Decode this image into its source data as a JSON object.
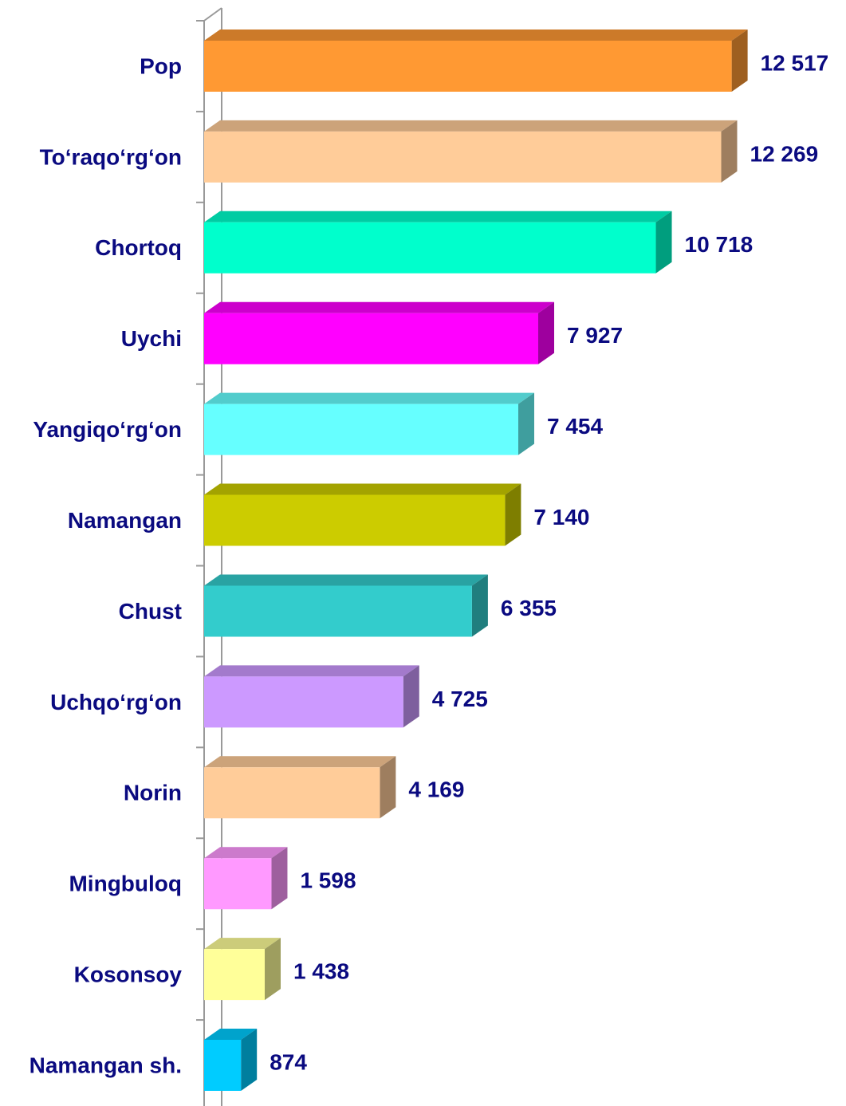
{
  "chart_data": {
    "type": "bar3d-horizontal",
    "categories": [
      "Pop",
      "To‘raqo‘rg‘on",
      "Chortoq",
      "Uychi",
      "Yangiqo‘rg‘on",
      "Namangan",
      "Chust",
      "Uchqo‘rg‘on",
      "Norin",
      "Mingbuloq",
      "Kosonsoy",
      "Namangan sh."
    ],
    "values": [
      12517,
      12269,
      10718,
      7927,
      7454,
      7140,
      6355,
      4725,
      4169,
      1598,
      1438,
      874
    ],
    "value_labels": [
      "12 517",
      "12 269",
      "10 718",
      "7 927",
      "7 454",
      "7 140",
      "6 355",
      "4 725",
      "4 169",
      "1 598",
      "1 438",
      "874"
    ],
    "colors": [
      "#FF9933",
      "#FFCC99",
      "#00FFCC",
      "#FF00FF",
      "#66FFFF",
      "#CCCC00",
      "#33CCCC",
      "#CC99FF",
      "#FFCC99",
      "#FF99FF",
      "#FFFF99",
      "#00CCFF"
    ],
    "xlim": [
      0,
      14000
    ]
  }
}
